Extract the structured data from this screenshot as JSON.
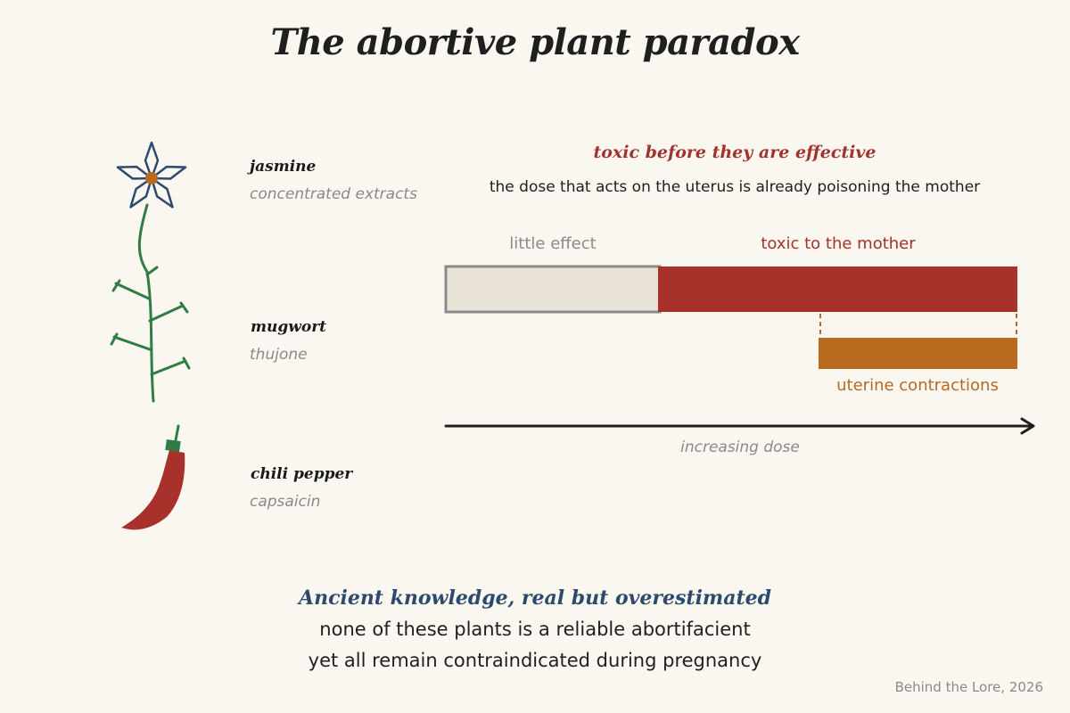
{
  "title": "The abortive plant paradox",
  "plants": [
    {
      "name": "jasmine",
      "compound": "concentrated extracts",
      "icon": "jasmine-flower-icon"
    },
    {
      "name": "mugwort",
      "compound": "thujone",
      "icon": "mugwort-sprig-icon"
    },
    {
      "name": "chili pepper",
      "compound": "capsaicin",
      "icon": "chili-pepper-icon"
    }
  ],
  "diagram": {
    "headline": "toxic before they are effective",
    "subline": "the dose that acts on the uterus is already poisoning the mother",
    "segments": {
      "little_effect": "little effect",
      "toxic_to_mother": "toxic to the mother",
      "uterine_contractions": "uterine contractions"
    },
    "axis_label": "increasing dose",
    "colors": {
      "little_effect": "#e8e2d6",
      "toxic": "#a8312c",
      "uterine": "#b86a1f",
      "axis": "#1f1f1f"
    }
  },
  "conclusion": {
    "heading": "Ancient knowledge, real but overestimated",
    "line1": "none of these plants is a reliable abortifacient",
    "line2": "yet all remain contraindicated during pregnancy"
  },
  "credit": "Behind the Lore, 2026"
}
